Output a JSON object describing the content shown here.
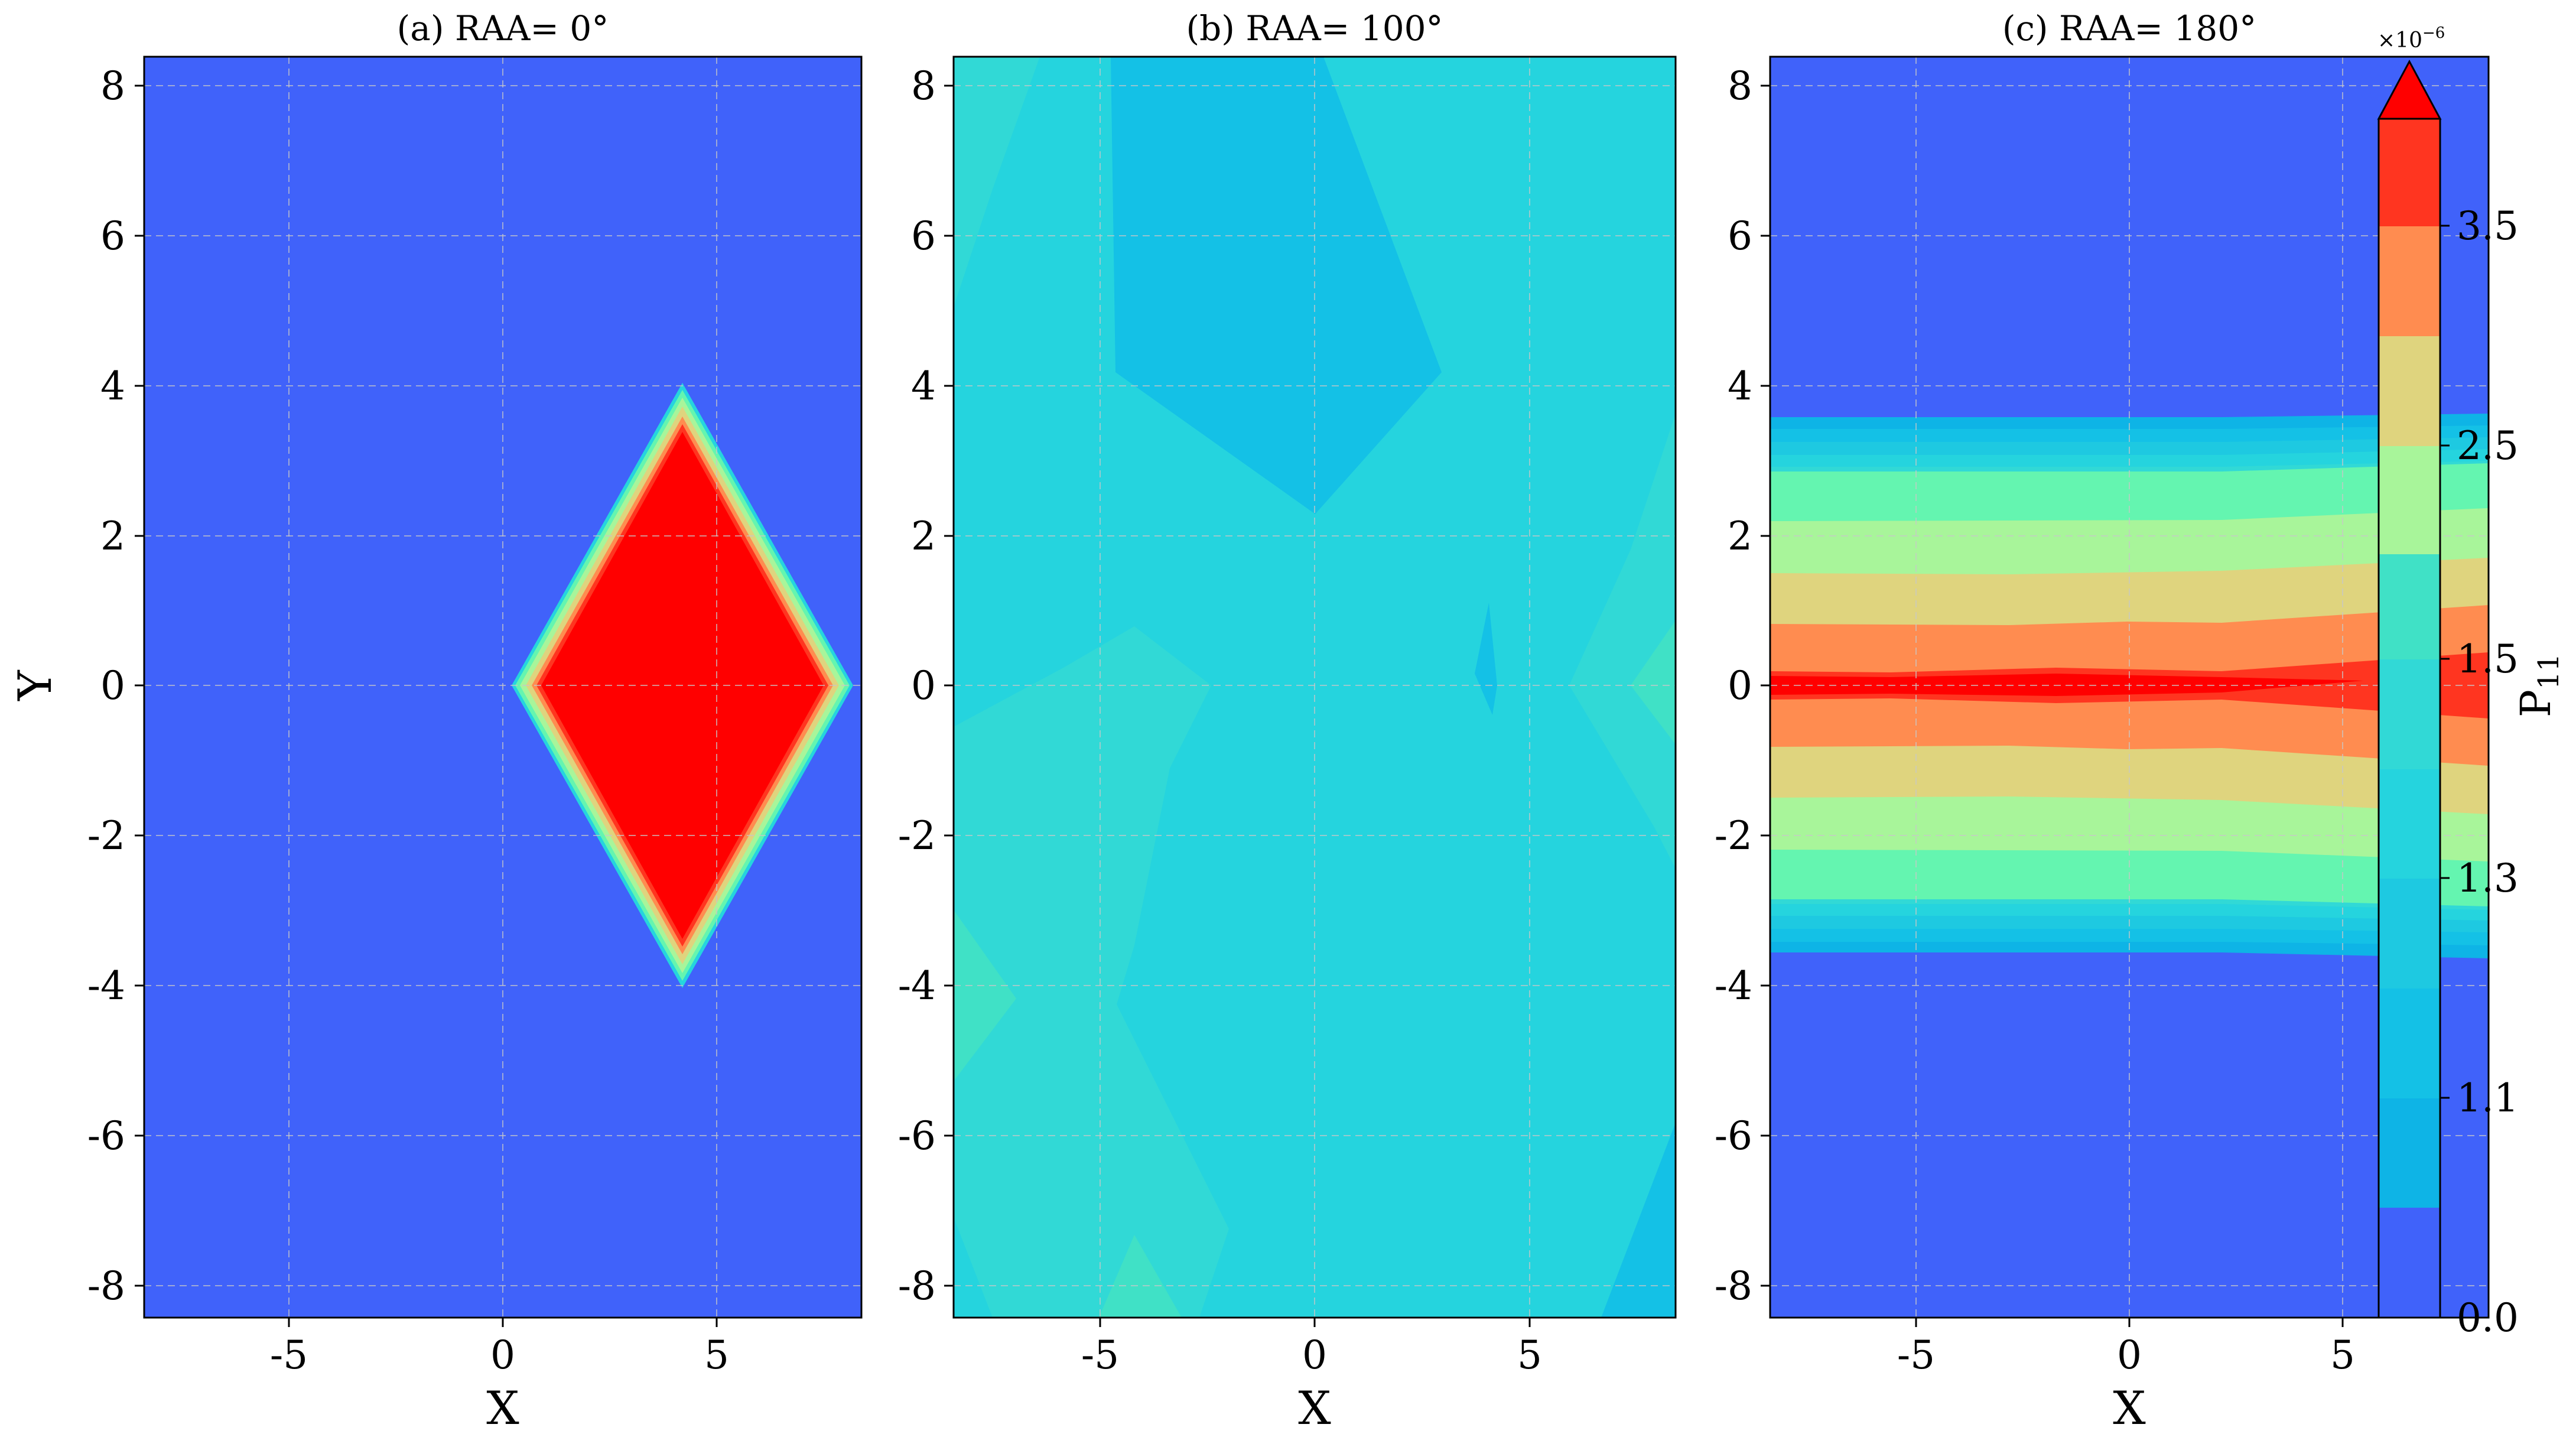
{
  "chart_data": [
    {
      "type": "contour",
      "title": "(a) RAA= 0°",
      "xlabel": "X",
      "ylabel": "Y",
      "xlim": [
        -8.4,
        8.4
      ],
      "ylim": [
        -8.4,
        8.4
      ],
      "xticks": [
        -5,
        0,
        5
      ],
      "yticks": [
        8,
        6,
        4,
        2,
        0,
        -2,
        -4,
        -6,
        -8
      ],
      "grid": true,
      "pattern": "uniform background with a high-value diamond centered at (4.2, 0), spanning x 0.2–8.2 and y -4 to 4",
      "background_level": "0.0",
      "feature_level": "above 3.9 (extend)"
    },
    {
      "type": "contour",
      "title": "(b) RAA= 100°",
      "xlabel": "X",
      "ylabel": "",
      "xlim": [
        -8.4,
        8.4
      ],
      "ylim": [
        -8.4,
        8.4
      ],
      "xticks": [
        -5,
        0,
        5
      ],
      "yticks": [
        8,
        6,
        4,
        2,
        0,
        -2,
        -4,
        -6,
        -8
      ],
      "grid": true,
      "pattern": "nearly uniform field at levels ~1.1–1.5 with faint polygonal variations",
      "background_level": "1.3"
    },
    {
      "type": "contour",
      "title": "(c) RAA= 180°",
      "xlabel": "X",
      "ylabel": "",
      "xlim": [
        -8.4,
        8.4
      ],
      "ylim": [
        -8.4,
        8.4
      ],
      "xticks": [
        -5,
        0,
        5
      ],
      "yticks": [
        8,
        6,
        4,
        2,
        0,
        -2,
        -4,
        -6,
        -8
      ],
      "grid": true,
      "pattern": "horizontal bands between y -3.6 and 3.6, increasing toward a maximum at y = 0",
      "background_level": "0.0"
    }
  ],
  "colorbar": {
    "label_main": "P",
    "label_sub": "11",
    "exponent_base": "×10",
    "exponent_power": "−6",
    "extend": "max",
    "tick_labels": [
      "3.5",
      "2.5",
      "1.5",
      "1.3",
      "1.1",
      "0.0"
    ],
    "levels": [
      "0.0",
      "1.0",
      "1.1",
      "1.2",
      "1.3",
      "1.4",
      "1.5",
      "2.0",
      "2.5",
      "3.0",
      "3.5",
      "3.9"
    ],
    "colors": [
      "#4062fa",
      "#0eb4e6",
      "#14c1e6",
      "#1ec9e1",
      "#25d4de",
      "#31d9d6",
      "#40e1c6",
      "#64f5b0",
      "#a8f59a",
      "#dfd47e",
      "#ff8c50",
      "#ff3520",
      "#ff0000"
    ]
  },
  "colors": {
    "background_blue": "#4062fa",
    "diamond_red": "#ff0000",
    "grid": "#c8c8c8"
  }
}
